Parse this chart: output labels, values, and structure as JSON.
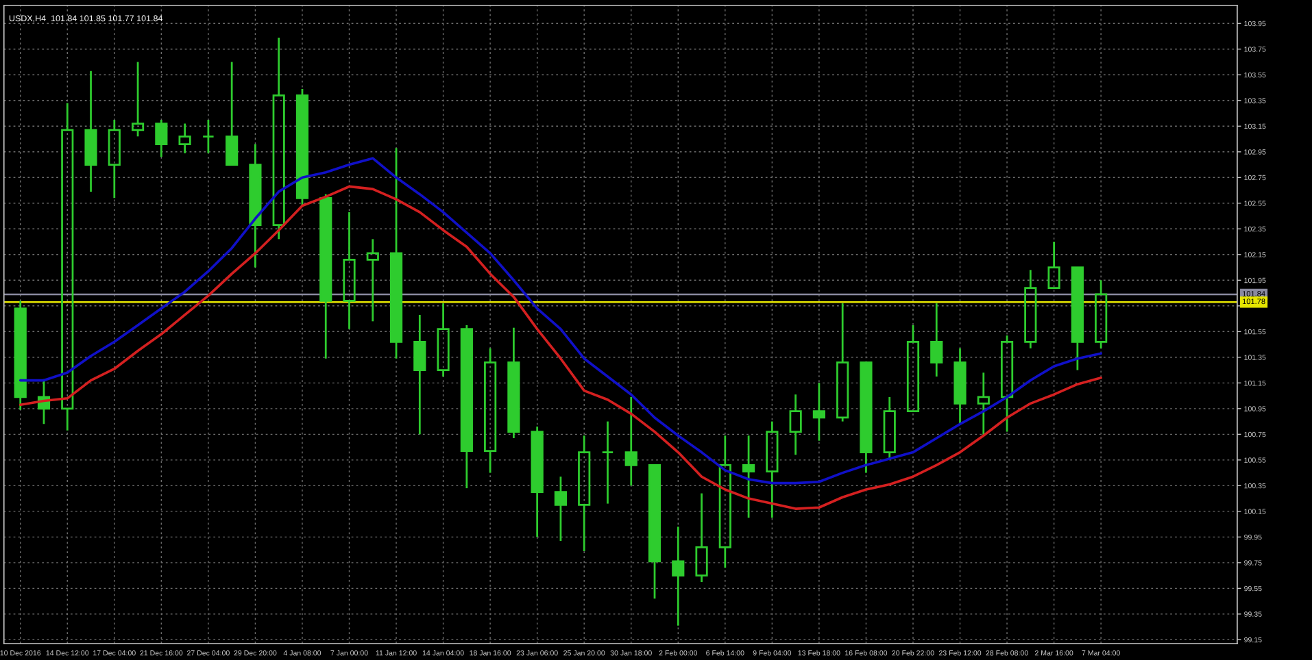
{
  "chart_data": {
    "type": "candlestick",
    "title": "USDX,H4  101.84 101.85 101.77 101.84",
    "categories": [
      "10 Dec 2016",
      null,
      "14 Dec 12:00",
      null,
      "17 Dec 04:00",
      null,
      "21 Dec 16:00",
      null,
      "27 Dec 04:00",
      null,
      "29 Dec 20:00",
      null,
      "4 Jan 08:00",
      null,
      "7 Jan 00:00",
      null,
      "11 Jan 12:00",
      null,
      "14 Jan 04:00",
      null,
      "18 Jan 16:00",
      null,
      "23 Jan 06:00",
      null,
      "25 Jan 20:00",
      null,
      "30 Jan 18:00",
      null,
      "2 Feb 00:00",
      null,
      "6 Feb 14:00",
      null,
      "9 Feb 04:00",
      null,
      "13 Feb 18:00",
      null,
      "16 Feb 08:00",
      null,
      "20 Feb 22:00",
      null,
      "23 Feb 12:00",
      null,
      "28 Feb 08:00",
      null,
      "2 Mar 16:00",
      null,
      "7 Mar 04:00"
    ],
    "color": "#2ecc2e",
    "ohlc": [
      [
        101.73,
        101.79,
        100.94,
        101.04
      ],
      [
        101.04,
        101.18,
        100.83,
        100.95
      ],
      [
        100.95,
        103.33,
        100.78,
        103.12
      ],
      [
        103.12,
        103.58,
        102.64,
        102.85
      ],
      [
        102.85,
        103.2,
        102.59,
        103.12
      ],
      [
        103.12,
        103.65,
        103.07,
        103.17
      ],
      [
        103.17,
        103.2,
        102.91,
        103.01
      ],
      [
        103.01,
        103.17,
        102.94,
        103.07
      ],
      [
        103.07,
        103.2,
        102.94,
        103.07
      ],
      [
        103.07,
        103.65,
        102.85,
        102.85
      ],
      [
        102.85,
        103.01,
        102.05,
        102.38
      ],
      [
        102.38,
        103.84,
        102.27,
        103.39
      ],
      [
        103.39,
        103.44,
        102.53,
        102.59
      ],
      [
        102.59,
        102.62,
        101.34,
        101.79
      ],
      [
        101.79,
        102.48,
        101.57,
        102.11
      ],
      [
        102.11,
        102.27,
        101.63,
        102.16
      ],
      [
        102.16,
        102.98,
        101.34,
        101.47
      ],
      [
        101.47,
        101.68,
        100.75,
        101.25
      ],
      [
        101.25,
        101.77,
        101.2,
        101.57
      ],
      [
        101.57,
        101.6,
        100.33,
        100.62
      ],
      [
        100.62,
        101.42,
        100.45,
        101.31
      ],
      [
        101.31,
        101.58,
        100.72,
        100.77
      ],
      [
        100.77,
        100.81,
        99.95,
        100.3
      ],
      [
        100.3,
        100.42,
        99.92,
        100.2
      ],
      [
        100.2,
        100.74,
        99.84,
        100.61
      ],
      [
        100.61,
        100.85,
        100.21,
        100.61
      ],
      [
        100.61,
        101.04,
        100.35,
        100.51
      ],
      [
        100.51,
        100.51,
        99.47,
        99.76
      ],
      [
        99.76,
        100.03,
        99.26,
        99.65
      ],
      [
        99.65,
        100.29,
        99.6,
        99.87
      ],
      [
        99.87,
        100.74,
        99.71,
        100.51
      ],
      [
        100.51,
        100.74,
        100.1,
        100.46
      ],
      [
        100.46,
        100.85,
        100.1,
        100.77
      ],
      [
        100.77,
        101.06,
        100.59,
        100.93
      ],
      [
        100.93,
        101.15,
        100.7,
        100.88
      ],
      [
        100.88,
        101.77,
        100.85,
        101.31
      ],
      [
        101.31,
        101.31,
        100.45,
        100.61
      ],
      [
        100.61,
        101.04,
        100.56,
        100.93
      ],
      [
        100.93,
        101.6,
        100.93,
        101.47
      ],
      [
        101.47,
        101.77,
        101.2,
        101.31
      ],
      [
        101.31,
        101.42,
        100.83,
        100.99
      ],
      [
        100.99,
        101.23,
        100.74,
        101.04
      ],
      [
        101.04,
        101.52,
        100.77,
        101.47
      ],
      [
        101.47,
        102.03,
        101.42,
        101.89
      ],
      [
        101.89,
        102.25,
        101.89,
        102.05
      ],
      [
        102.05,
        102.05,
        101.25,
        101.47
      ],
      [
        101.47,
        101.95,
        101.42,
        101.84
      ]
    ],
    "series": [
      {
        "type": "line",
        "color": "#1010c8",
        "values": [
          101.17,
          101.17,
          101.23,
          101.36,
          101.47,
          101.6,
          101.73,
          101.86,
          102.02,
          102.2,
          102.43,
          102.64,
          102.75,
          102.79,
          102.85,
          102.9,
          102.75,
          102.62,
          102.48,
          102.32,
          102.16,
          101.95,
          101.73,
          101.57,
          101.34,
          101.2,
          101.06,
          100.88,
          100.74,
          100.61,
          100.47,
          100.4,
          100.37,
          100.37,
          100.38,
          100.45,
          100.51,
          100.56,
          100.61,
          100.72,
          100.83,
          100.93,
          101.04,
          101.17,
          101.28,
          101.34,
          101.38
        ]
      },
      {
        "type": "line",
        "color": "#d42020",
        "values": [
          100.98,
          101.01,
          101.03,
          101.17,
          101.26,
          101.4,
          101.53,
          101.68,
          101.83,
          102.0,
          102.16,
          102.34,
          102.53,
          102.6,
          102.68,
          102.66,
          102.58,
          102.48,
          102.34,
          102.21,
          102.0,
          101.82,
          101.57,
          101.34,
          101.09,
          101.02,
          100.91,
          100.77,
          100.61,
          100.42,
          100.32,
          100.25,
          100.21,
          100.17,
          100.18,
          100.26,
          100.32,
          100.36,
          100.42,
          100.51,
          100.61,
          100.74,
          100.88,
          100.99,
          101.06,
          101.14,
          101.19
        ]
      }
    ],
    "ylim": [
      99.12,
      104.09
    ],
    "yticks": [
      99.15,
      99.35,
      99.55,
      99.75,
      99.95,
      100.15,
      100.35,
      100.55,
      100.75,
      100.95,
      101.15,
      101.35,
      101.55,
      {
        "value": 101.75,
        "label": null
      },
      101.95,
      102.15,
      102.35,
      102.55,
      102.75,
      102.95,
      103.15,
      103.35,
      103.55,
      103.75,
      103.95
    ],
    "grid": true,
    "ref_lines": [
      {
        "axis": "y",
        "value": 101.84,
        "label": "101.84",
        "color": "#8a8aa0",
        "line_style": "solid"
      },
      {
        "axis": "y",
        "value": 101.78,
        "label": "101.78",
        "color": "#e6e600",
        "line_style": "solid"
      }
    ]
  }
}
